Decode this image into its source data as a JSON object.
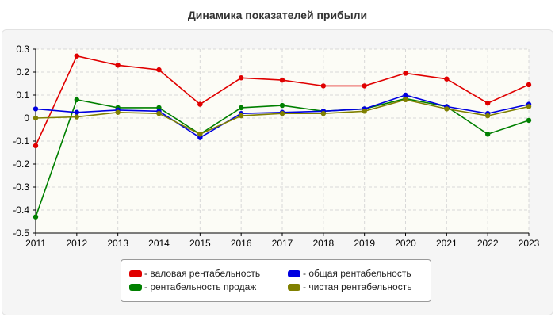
{
  "chart_data": {
    "type": "line",
    "title": "Динамика показателей прибыли",
    "xlabel": "",
    "ylabel": "",
    "x": [
      "2011",
      "2012",
      "2013",
      "2014",
      "2015",
      "2016",
      "2017",
      "2018",
      "2019",
      "2020",
      "2021",
      "2022",
      "2023"
    ],
    "ylim": [
      -0.5,
      0.3
    ],
    "yticks": [
      "-0.5",
      "-0.4",
      "-0.3",
      "-0.2",
      "-0.1",
      "0",
      "0.1",
      "0.2",
      "0.3"
    ],
    "grid": true,
    "legend_position": "bottom",
    "series": [
      {
        "name": "- валовая рентабельность",
        "color": "#e00000",
        "values": [
          -0.12,
          0.27,
          0.23,
          0.21,
          0.06,
          0.175,
          0.165,
          0.14,
          0.14,
          0.195,
          0.17,
          0.065,
          0.145
        ]
      },
      {
        "name": "- рентабельность продаж",
        "color": "#008000",
        "values": [
          -0.43,
          0.08,
          0.045,
          0.045,
          -0.07,
          0.045,
          0.055,
          0.03,
          0.04,
          0.085,
          0.05,
          -0.07,
          -0.01
        ]
      },
      {
        "name": "- общая рентабельность",
        "color": "#0000e0",
        "values": [
          0.04,
          0.025,
          0.035,
          0.03,
          -0.085,
          0.02,
          0.025,
          0.03,
          0.04,
          0.1,
          0.05,
          0.02,
          0.06
        ]
      },
      {
        "name": "- чистая рентабельность",
        "color": "#808000",
        "values": [
          0.0,
          0.005,
          0.025,
          0.02,
          -0.07,
          0.01,
          0.02,
          0.02,
          0.03,
          0.08,
          0.04,
          0.01,
          0.05
        ]
      }
    ]
  }
}
